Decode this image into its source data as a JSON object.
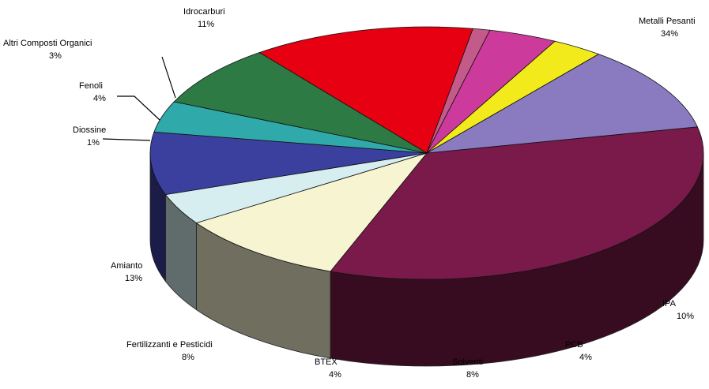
{
  "chart_data": {
    "type": "pie",
    "style": "3d-exploded",
    "title": "",
    "categories": [
      "Metalli Pesanti",
      "IPA",
      "PCB",
      "Solventi",
      "BTEX",
      "Fertilizzanti e Pesticidi",
      "Amianto",
      "Diossine",
      "Fenoli",
      "Altri Composti Organici",
      "Idrocarburi"
    ],
    "values": [
      34,
      10,
      4,
      8,
      4,
      8,
      13,
      1,
      4,
      3,
      11
    ],
    "labels": [
      {
        "name": "Metalli Pesanti",
        "value": "34%"
      },
      {
        "name": "IPA",
        "value": "10%"
      },
      {
        "name": "PCB",
        "value": "4%"
      },
      {
        "name": "Solventi",
        "value": "8%"
      },
      {
        "name": "BTEX",
        "value": "4%"
      },
      {
        "name": "Fertilizzanti e Pesticidi",
        "value": "8%"
      },
      {
        "name": "Amianto",
        "value": "13%"
      },
      {
        "name": "Diossine",
        "value": "1%"
      },
      {
        "name": "Fenoli",
        "value": "4%"
      },
      {
        "name": "Altri Composti Organici",
        "value": "3%"
      },
      {
        "name": "Idrocarburi",
        "value": "11%"
      }
    ],
    "colors": [
      "#7a1a4a",
      "#f7f4d2",
      "#d6eef0",
      "#3b3f9e",
      "#2fa9a9",
      "#2e7a44",
      "#e60012",
      "#c45a8a",
      "#cc3a9c",
      "#f2ea1a",
      "#8a7ac0"
    ],
    "legend": "none",
    "grid": false
  }
}
